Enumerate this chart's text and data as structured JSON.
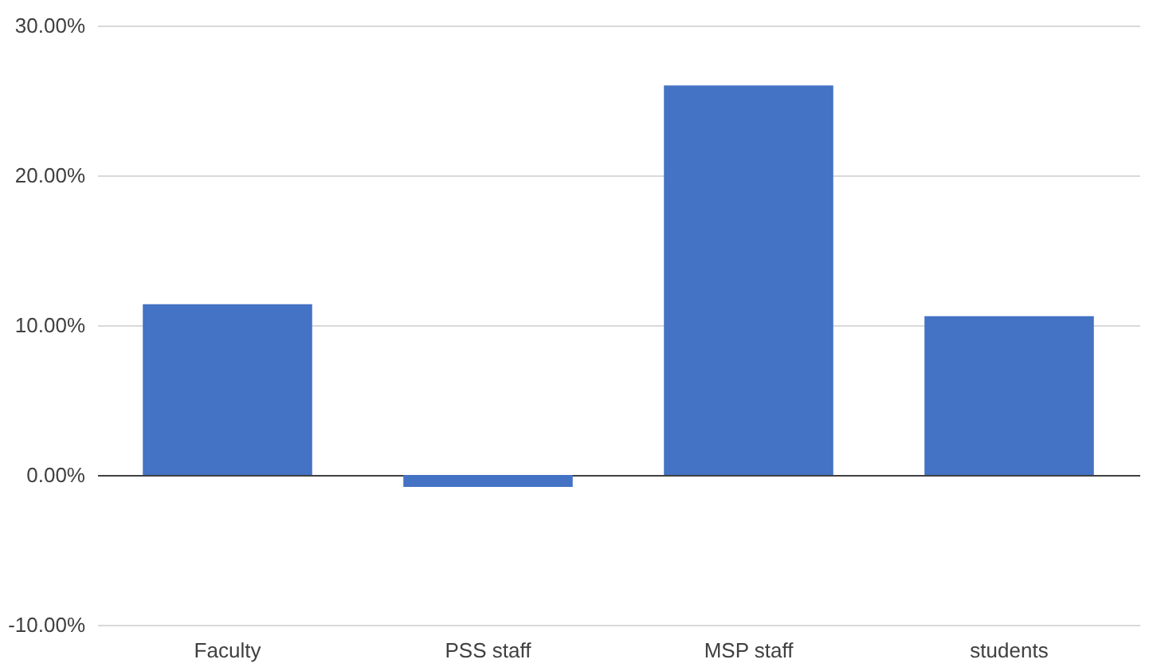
{
  "chart_data": {
    "type": "bar",
    "categories": [
      "Faculty",
      "PSS staff",
      "MSP staff",
      "students"
    ],
    "values": [
      11.4,
      -0.8,
      26.0,
      10.6
    ],
    "color": "#4472c4",
    "ylim": [
      -10,
      30
    ],
    "yticks": [
      {
        "value": -10,
        "label": "-10.00%"
      },
      {
        "value": 0,
        "label": "0.00%"
      },
      {
        "value": 10,
        "label": "10.00%"
      },
      {
        "value": 20,
        "label": "20.00%"
      },
      {
        "value": 30,
        "label": "30.00%"
      }
    ],
    "grid": "y"
  }
}
